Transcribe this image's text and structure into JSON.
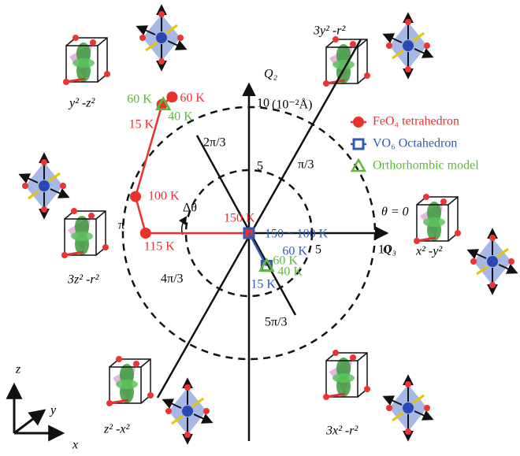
{
  "chart_data": {
    "type": "scatter",
    "x_label": "Q₃",
    "y_label": "Q₂",
    "y_unit": "(10⁻²Å)",
    "xlim": [
      -10,
      10
    ],
    "ylim": [
      -10,
      10
    ],
    "xticks": [
      5,
      10
    ],
    "yticks": [
      5,
      10
    ],
    "grid": "dashed-circles",
    "angle_labels": [
      "θ = 0",
      "π/3",
      "2π/3",
      "π",
      "4π/3",
      "5π/3"
    ],
    "delta_label": "Δθ",
    "orbital_labels": [
      "3y² -r²",
      "y² -z²",
      "3z² -r²",
      "z² -x²",
      "3x² -r²",
      "x² -y²"
    ],
    "axes_labels": [
      "z",
      "y",
      "x"
    ],
    "series": [
      {
        "name": "FeO₄ tetrahedron",
        "color": "#e8322d",
        "marker": "circle",
        "x": [
          0,
          -8.2,
          -9.0,
          -6.9,
          -6.1
        ],
        "values": [
          0,
          0,
          2.9,
          10.2,
          10.8
        ],
        "labels": [
          "150 K",
          "115 K",
          "100 K",
          "15 K",
          "60 K"
        ]
      },
      {
        "name": "VO₆ Octahedron",
        "color": "#2f5bb5",
        "marker": "square",
        "x": [
          0,
          1.4,
          1.4
        ],
        "values": [
          0,
          -2.6,
          -2.6
        ],
        "labels": [
          "150 ~ 100 K",
          "60 K",
          "15 K"
        ]
      },
      {
        "name": "Orthorhombic model",
        "color": "#5fb83b",
        "marker": "triangle",
        "x": [
          -6.8,
          -6.8,
          1.4,
          1.4
        ],
        "values": [
          10.2,
          10.2,
          -2.6,
          -2.6
        ],
        "labels": [
          "60 K",
          "40 K",
          "60 K",
          "40 K"
        ]
      }
    ]
  }
}
